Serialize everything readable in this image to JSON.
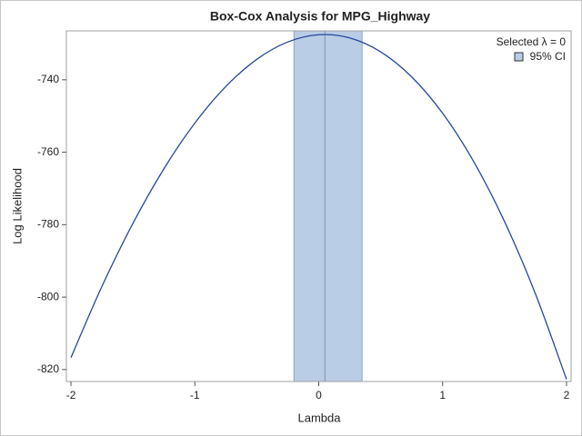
{
  "chart_data": {
    "type": "line",
    "title": "Box-Cox Analysis for MPG_Highway",
    "x_label": "Lambda",
    "y_label": "Log Likelihood",
    "x": [
      -2,
      -1.75,
      -1.5,
      -1.25,
      -1,
      -0.75,
      -0.5,
      -0.25,
      0,
      0.25,
      0.5,
      0.75,
      1,
      1.25,
      1.5,
      1.75,
      2
    ],
    "series": [
      {
        "name": "Log Likelihood",
        "color": "#24499a",
        "values": [
          -816.7,
          -797.04,
          -779.64,
          -764.58,
          -751.96,
          -741.85,
          -734.35,
          -729.56,
          -727.56,
          -728.44,
          -732.28,
          -739.19,
          -749.24,
          -762.53,
          -779.15,
          -799.17,
          -822.7
        ]
      }
    ],
    "selected_label": "Selected λ = 0",
    "selected_lambda": 0.05,
    "selected_color": "#8e9cab",
    "ci": {
      "name": "95% CI",
      "range": [
        -0.2,
        0.35
      ],
      "color": "#b9cde6",
      "edge": "#8ea6c4"
    },
    "xlim": [
      -2.037,
      2.037
    ],
    "xticks": [
      -2,
      -1,
      0,
      1,
      2
    ],
    "ylim": [
      -823.3,
      -726.5
    ],
    "yticks": [
      -740,
      -760,
      -780,
      -800,
      -820
    ],
    "grid": false,
    "legend": "top-right"
  }
}
